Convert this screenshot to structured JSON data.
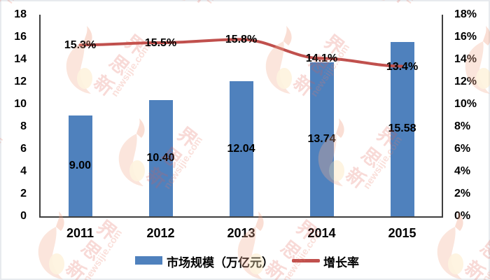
{
  "watermark": {
    "brand": "新思界",
    "domain": "newsijie.com"
  },
  "chart_data": {
    "type": "bar+line combo",
    "title": "",
    "categories": [
      "2011",
      "2012",
      "2013",
      "2014",
      "2015"
    ],
    "series": [
      {
        "name": "市场规模（万亿元）",
        "type": "bar",
        "axis": "left",
        "values": [
          9.0,
          10.4,
          12.04,
          13.74,
          15.58
        ],
        "labels": [
          "9.00",
          "10.40",
          "12.04",
          "13.74",
          "15.58"
        ],
        "color": "#4F81BD"
      },
      {
        "name": "增长率",
        "type": "line",
        "axis": "right",
        "values": [
          15.3,
          15.5,
          15.8,
          14.1,
          13.4
        ],
        "labels": [
          "15.3%",
          "15.5%",
          "15.8%",
          "14.1%",
          "13.4%"
        ],
        "color": "#C0504D"
      }
    ],
    "left_axis": {
      "min": 0,
      "max": 18,
      "step": 2,
      "tick_labels": [
        "0",
        "2",
        "4",
        "6",
        "8",
        "10",
        "12",
        "14",
        "16",
        "18"
      ]
    },
    "right_axis": {
      "min": 0,
      "max": 18,
      "step": 2,
      "tick_labels": [
        "0%",
        "2%",
        "4%",
        "6%",
        "8%",
        "10%",
        "12%",
        "14%",
        "16%",
        "18%"
      ]
    },
    "grid": false,
    "legend_position": "bottom",
    "axis_color": "#3f3f3f"
  }
}
